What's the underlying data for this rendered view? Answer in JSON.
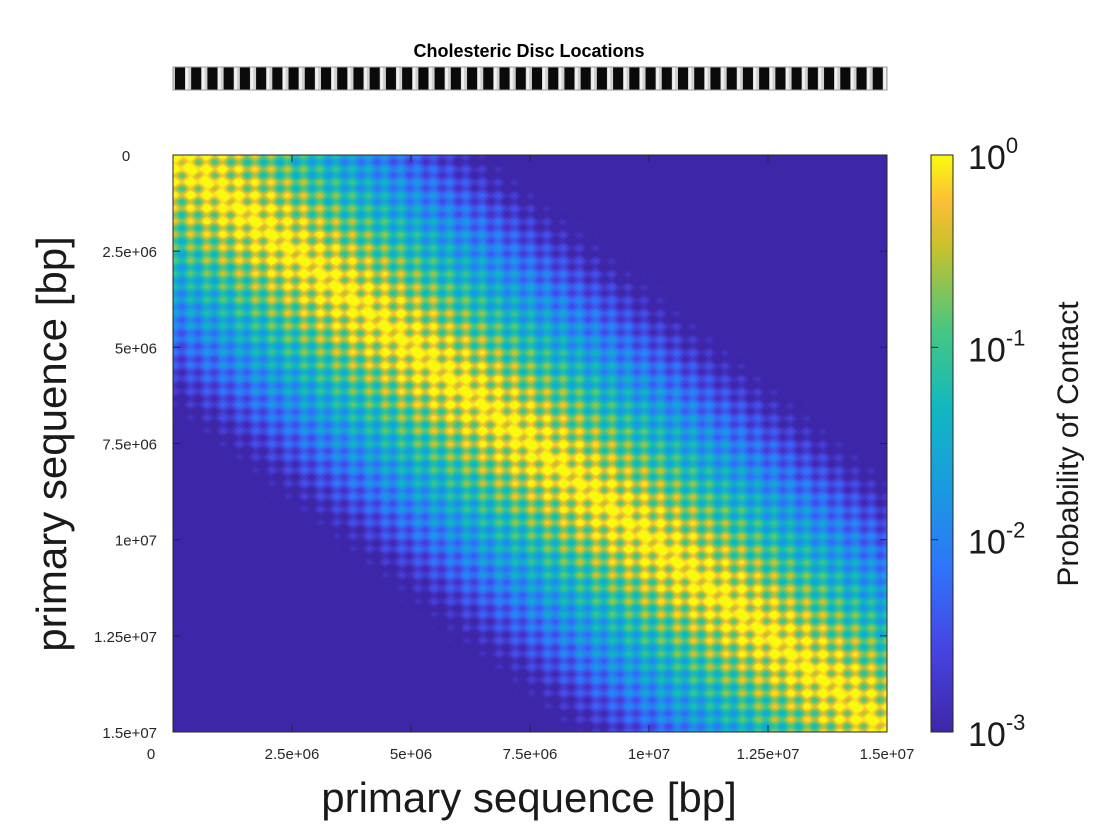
{
  "chart_data": {
    "type": "heatmap",
    "strip": {
      "title": "Cholesteric Disc Locations",
      "disc_count": 44
    },
    "xlabel": "primary sequence [bp]",
    "ylabel": "primary sequence [bp]",
    "x_range": [
      0,
      15000000
    ],
    "y_range": [
      0,
      15000000
    ],
    "x_ticks": [
      "0",
      "2.5e+06",
      "5e+06",
      "7.5e+06",
      "1e+07",
      "1.25e+07",
      "1.5e+07"
    ],
    "x_tick_values": [
      0,
      2500000,
      5000000,
      7500000,
      10000000,
      12500000,
      15000000
    ],
    "y_ticks": [
      "0",
      "2.5e+06",
      "5e+06",
      "7.5e+06",
      "1e+07",
      "1.25e+07",
      "1.5e+07"
    ],
    "y_tick_values": [
      0,
      2500000,
      5000000,
      7500000,
      10000000,
      12500000,
      15000000
    ],
    "y_direction": "reversed",
    "colorbar": {
      "label": "Probability of Contact",
      "scale": "log",
      "range": [
        0.001,
        1
      ],
      "colormap": "parula",
      "ticks": [
        {
          "value": 1,
          "base": "10",
          "exponent": "0"
        },
        {
          "value": 0.1,
          "base": "10",
          "exponent": "-1"
        },
        {
          "value": 0.01,
          "base": "10",
          "exponent": "-2"
        },
        {
          "value": 0.001,
          "base": "10",
          "exponent": "-3"
        }
      ]
    },
    "grid": false
  }
}
